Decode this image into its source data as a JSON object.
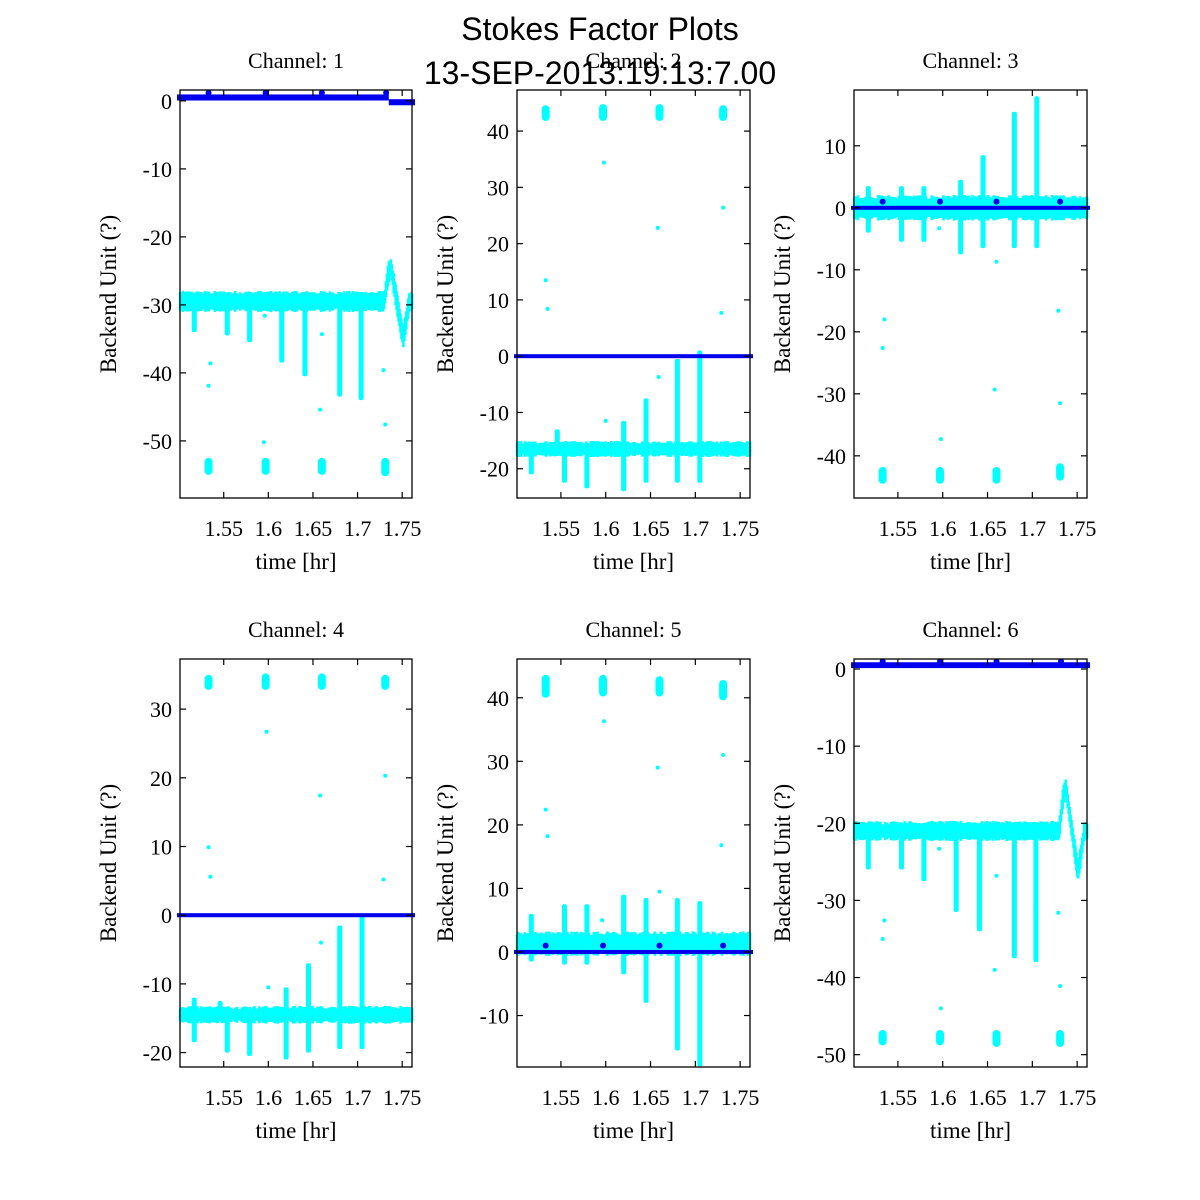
{
  "figure": {
    "title_line1": "Stokes Factor Plots",
    "title_line2": "13-SEP-2013:19:13:7.00",
    "colors": {
      "primary_series": "#0000ee",
      "secondary_series": "#00ffff",
      "axes": "#000000",
      "background": "#ffffff"
    }
  },
  "chart_data": [
    {
      "type": "scatter",
      "title": "Channel: 1",
      "xlabel": "time [hr]",
      "ylabel": "Backend Unit (?)",
      "xlim": [
        1.501,
        1.761
      ],
      "ylim": [
        -58.4,
        1.6
      ],
      "xticks": [
        1.55,
        1.6,
        1.65,
        1.7,
        1.75
      ],
      "xtick_labels": [
        "1.55",
        "1.6",
        "1.65",
        "1.7",
        "1.75"
      ],
      "yticks": [
        0,
        -10,
        -20,
        -30,
        -40,
        -50
      ],
      "ytick_labels": [
        "0",
        "-10",
        "-20",
        "-30",
        "-40",
        "-50"
      ],
      "series": [
        {
          "name": "blue",
          "color": "#0000ee",
          "baseline": 0.5,
          "noise": 0.3,
          "bumps": [
            {
              "x": 1.533,
              "y": 1.2
            },
            {
              "x": 1.597,
              "y": 1.2
            },
            {
              "x": 1.66,
              "y": 1.2
            },
            {
              "x": 1.732,
              "y": 1.2
            }
          ],
          "dip": {
            "x0": 1.735,
            "x1": 1.761,
            "y": -0.2
          }
        },
        {
          "name": "cyan",
          "color": "#00ffff",
          "baseline": -29.5,
          "noise": 1.2,
          "spikes": [
            {
              "x": 1.517,
              "y": -34
            },
            {
              "x": 1.554,
              "y": -34.5
            },
            {
              "x": 1.579,
              "y": -35.5
            },
            {
              "x": 1.615,
              "y": -38.5
            },
            {
              "x": 1.641,
              "y": -40.5
            },
            {
              "x": 1.68,
              "y": -43.5
            },
            {
              "x": 1.704,
              "y": -44
            }
          ],
          "bump": {
            "x": 1.74,
            "peak": -24.5,
            "trough": -35
          },
          "clusters": [
            {
              "x": 1.533,
              "y0": -55,
              "y1": -52.5
            },
            {
              "x": 1.597,
              "y0": -55,
              "y1": -52.5
            },
            {
              "x": 1.66,
              "y0": -55,
              "y1": -52.5
            },
            {
              "x": 1.731,
              "y0": -55.2,
              "y1": -52.5
            }
          ],
          "outliers": [
            [
              1.535,
              -38.6
            ],
            [
              1.533,
              -41.9
            ],
            [
              1.595,
              -50.2
            ],
            [
              1.596,
              -31.6
            ],
            [
              1.658,
              -45.4
            ],
            [
              1.66,
              -34.3
            ],
            [
              1.729,
              -39.6
            ],
            [
              1.731,
              -47.6
            ]
          ]
        }
      ]
    },
    {
      "type": "scatter",
      "title": "Channel: 2",
      "xlabel": "time [hr]",
      "ylabel": "Backend Unit (?)",
      "xlim": [
        1.501,
        1.761
      ],
      "ylim": [
        -25.2,
        47.3
      ],
      "xticks": [
        1.55,
        1.6,
        1.65,
        1.7,
        1.75
      ],
      "xtick_labels": [
        "1.55",
        "1.6",
        "1.65",
        "1.7",
        "1.75"
      ],
      "yticks": [
        40,
        30,
        20,
        10,
        0,
        -10,
        -20
      ],
      "ytick_labels": [
        "40",
        "30",
        "20",
        "10",
        "0",
        "-10",
        "-20"
      ],
      "series": [
        {
          "name": "blue",
          "color": "#0000ee",
          "baseline": 0,
          "noise": 0.15
        },
        {
          "name": "cyan",
          "color": "#00ffff",
          "baseline": -16.5,
          "noise": 1.1,
          "spikes_up": [
            {
              "x": 1.546,
              "y": -13
            },
            {
              "x": 1.62,
              "y": -11.5
            },
            {
              "x": 1.645,
              "y": -7.5
            },
            {
              "x": 1.68,
              "y": -0.5
            },
            {
              "x": 1.705,
              "y": 1
            }
          ],
          "spikes_down": [
            {
              "x": 1.517,
              "y": -21
            },
            {
              "x": 1.554,
              "y": -22.5
            },
            {
              "x": 1.579,
              "y": -23.5
            },
            {
              "x": 1.62,
              "y": -24
            },
            {
              "x": 1.645,
              "y": -22.5
            },
            {
              "x": 1.68,
              "y": -22.5
            },
            {
              "x": 1.705,
              "y": -22.5
            }
          ],
          "clusters": [
            {
              "x": 1.533,
              "y0": 41.8,
              "y1": 44.6
            },
            {
              "x": 1.597,
              "y0": 41.8,
              "y1": 44.8
            },
            {
              "x": 1.66,
              "y0": 41.8,
              "y1": 44.8
            },
            {
              "x": 1.731,
              "y0": 41.8,
              "y1": 44.6
            }
          ],
          "outliers": [
            [
              1.533,
              13.5
            ],
            [
              1.535,
              8.4
            ],
            [
              1.598,
              34.4
            ],
            [
              1.658,
              22.8
            ],
            [
              1.731,
              26.4
            ],
            [
              1.729,
              7.7
            ],
            [
              1.659,
              -3.7
            ],
            [
              1.6,
              -11.5
            ]
          ]
        }
      ]
    },
    {
      "type": "scatter",
      "title": "Channel: 3",
      "xlabel": "time [hr]",
      "ylabel": "Backend Unit (?)",
      "xlim": [
        1.501,
        1.761
      ],
      "ylim": [
        -46.8,
        19
      ],
      "xticks": [
        1.55,
        1.6,
        1.65,
        1.7,
        1.75
      ],
      "xtick_labels": [
        "1.55",
        "1.6",
        "1.65",
        "1.7",
        "1.75"
      ],
      "yticks": [
        10,
        0,
        -10,
        -20,
        -30,
        -40
      ],
      "ytick_labels": [
        "10",
        "0",
        "-10",
        "-20",
        "-30",
        "-40"
      ],
      "series": [
        {
          "name": "blue",
          "color": "#0000ee",
          "baseline": 0,
          "noise": 0.15,
          "bumps": [
            {
              "x": 1.533,
              "y": 1
            },
            {
              "x": 1.597,
              "y": 1
            },
            {
              "x": 1.66,
              "y": 1
            },
            {
              "x": 1.731,
              "y": 1
            }
          ]
        },
        {
          "name": "cyan",
          "color": "#00ffff",
          "baseline": 0,
          "noise": 1.6,
          "spikes_up": [
            {
              "x": 1.517,
              "y": 3.5
            },
            {
              "x": 1.554,
              "y": 3.5
            },
            {
              "x": 1.579,
              "y": 3.5
            },
            {
              "x": 1.62,
              "y": 4.5
            },
            {
              "x": 1.645,
              "y": 8.5
            },
            {
              "x": 1.68,
              "y": 15.5
            },
            {
              "x": 1.705,
              "y": 18
            }
          ],
          "spikes_down": [
            {
              "x": 1.517,
              "y": -4
            },
            {
              "x": 1.554,
              "y": -5.5
            },
            {
              "x": 1.579,
              "y": -5.5
            },
            {
              "x": 1.62,
              "y": -7.5
            },
            {
              "x": 1.645,
              "y": -6.5
            },
            {
              "x": 1.68,
              "y": -6.5
            },
            {
              "x": 1.705,
              "y": -6.5
            }
          ],
          "clusters": [
            {
              "x": 1.533,
              "y0": -44.5,
              "y1": -41.8
            },
            {
              "x": 1.597,
              "y0": -44.5,
              "y1": -41.8
            },
            {
              "x": 1.66,
              "y0": -44.5,
              "y1": -41.8
            },
            {
              "x": 1.731,
              "y0": -44,
              "y1": -41.2
            }
          ],
          "outliers": [
            [
              1.535,
              -18
            ],
            [
              1.533,
              -22.6
            ],
            [
              1.598,
              -37.3
            ],
            [
              1.596,
              -3.3
            ],
            [
              1.658,
              -29.3
            ],
            [
              1.66,
              -8.7
            ],
            [
              1.729,
              -16.6
            ],
            [
              1.731,
              -31.5
            ]
          ]
        }
      ]
    },
    {
      "type": "scatter",
      "title": "Channel: 4",
      "xlabel": "time [hr]",
      "ylabel": "Backend Unit (?)",
      "xlim": [
        1.501,
        1.761
      ],
      "ylim": [
        -22.1,
        37.3
      ],
      "xticks": [
        1.55,
        1.6,
        1.65,
        1.7,
        1.75
      ],
      "xtick_labels": [
        "1.55",
        "1.6",
        "1.65",
        "1.7",
        "1.75"
      ],
      "yticks": [
        30,
        20,
        10,
        0,
        -10,
        -20
      ],
      "ytick_labels": [
        "30",
        "20",
        "10",
        "0",
        "-10",
        "-20"
      ],
      "series": [
        {
          "name": "blue",
          "color": "#0000ee",
          "baseline": 0,
          "noise": 0.15
        },
        {
          "name": "cyan",
          "color": "#00ffff",
          "baseline": -14.5,
          "noise": 1.0,
          "spikes_up": [
            {
              "x": 1.517,
              "y": -12
            },
            {
              "x": 1.546,
              "y": -12.5
            },
            {
              "x": 1.62,
              "y": -10.5
            },
            {
              "x": 1.645,
              "y": -7
            },
            {
              "x": 1.68,
              "y": -1.5
            },
            {
              "x": 1.705,
              "y": 0
            }
          ],
          "spikes_down": [
            {
              "x": 1.517,
              "y": -18.5
            },
            {
              "x": 1.554,
              "y": -20
            },
            {
              "x": 1.579,
              "y": -20.5
            },
            {
              "x": 1.62,
              "y": -21
            },
            {
              "x": 1.645,
              "y": -20
            },
            {
              "x": 1.68,
              "y": -19.5
            },
            {
              "x": 1.705,
              "y": -19.5
            }
          ],
          "clusters": [
            {
              "x": 1.533,
              "y0": 32.8,
              "y1": 35
            },
            {
              "x": 1.597,
              "y0": 32.8,
              "y1": 35.2
            },
            {
              "x": 1.66,
              "y0": 32.8,
              "y1": 35.2
            },
            {
              "x": 1.731,
              "y0": 32.8,
              "y1": 35
            }
          ],
          "outliers": [
            [
              1.533,
              9.9
            ],
            [
              1.535,
              5.6
            ],
            [
              1.598,
              26.7
            ],
            [
              1.658,
              17.4
            ],
            [
              1.731,
              20.3
            ],
            [
              1.729,
              5.2
            ],
            [
              1.659,
              -4
            ],
            [
              1.6,
              -10.5
            ]
          ]
        }
      ]
    },
    {
      "type": "scatter",
      "title": "Channel: 5",
      "xlabel": "time [hr]",
      "ylabel": "Backend Unit (?)",
      "xlim": [
        1.501,
        1.761
      ],
      "ylim": [
        -18.1,
        46.1
      ],
      "xticks": [
        1.55,
        1.6,
        1.65,
        1.7,
        1.75
      ],
      "xtick_labels": [
        "1.55",
        "1.6",
        "1.65",
        "1.7",
        "1.75"
      ],
      "yticks": [
        40,
        30,
        20,
        10,
        0,
        -10
      ],
      "ytick_labels": [
        "40",
        "30",
        "20",
        "10",
        "0",
        "-10"
      ],
      "series": [
        {
          "name": "blue",
          "color": "#0000ee",
          "baseline": 0,
          "noise": 0.15,
          "bumps": [
            {
              "x": 1.533,
              "y": 1
            },
            {
              "x": 1.597,
              "y": 1
            },
            {
              "x": 1.66,
              "y": 1
            },
            {
              "x": 1.731,
              "y": 1
            }
          ]
        },
        {
          "name": "cyan",
          "color": "#00ffff",
          "baseline": 1.3,
          "noise": 1.5,
          "spikes_up": [
            {
              "x": 1.517,
              "y": 6
            },
            {
              "x": 1.554,
              "y": 7.5
            },
            {
              "x": 1.579,
              "y": 7.5
            },
            {
              "x": 1.62,
              "y": 9
            },
            {
              "x": 1.645,
              "y": 8.5
            },
            {
              "x": 1.68,
              "y": 8.5
            },
            {
              "x": 1.705,
              "y": 8
            }
          ],
          "spikes_down": [
            {
              "x": 1.517,
              "y": -1.5
            },
            {
              "x": 1.554,
              "y": -2
            },
            {
              "x": 1.579,
              "y": -2
            },
            {
              "x": 1.62,
              "y": -3.5
            },
            {
              "x": 1.645,
              "y": -8
            },
            {
              "x": 1.68,
              "y": -15.5
            },
            {
              "x": 1.705,
              "y": -18
            }
          ],
          "clusters": [
            {
              "x": 1.533,
              "y0": 40,
              "y1": 43.6
            },
            {
              "x": 1.597,
              "y0": 40.2,
              "y1": 43.6
            },
            {
              "x": 1.66,
              "y0": 40.2,
              "y1": 43.4
            },
            {
              "x": 1.731,
              "y0": 39.6,
              "y1": 42.8
            }
          ],
          "outliers": [
            [
              1.533,
              22.4
            ],
            [
              1.535,
              18.2
            ],
            [
              1.598,
              36.3
            ],
            [
              1.658,
              29
            ],
            [
              1.731,
              31
            ],
            [
              1.729,
              16.8
            ],
            [
              1.66,
              9.5
            ],
            [
              1.596,
              5
            ]
          ]
        }
      ]
    },
    {
      "type": "scatter",
      "title": "Channel: 6",
      "xlabel": "time [hr]",
      "ylabel": "Backend Unit (?)",
      "xlim": [
        1.501,
        1.761
      ],
      "ylim": [
        -51.6,
        1.3
      ],
      "xticks": [
        1.55,
        1.6,
        1.65,
        1.7,
        1.75
      ],
      "xtick_labels": [
        "1.55",
        "1.6",
        "1.65",
        "1.7",
        "1.75"
      ],
      "yticks": [
        0,
        -10,
        -20,
        -30,
        -40,
        -50
      ],
      "ytick_labels": [
        "0",
        "-10",
        "-20",
        "-30",
        "-40",
        "-50"
      ],
      "series": [
        {
          "name": "blue",
          "color": "#0000ee",
          "baseline": 0.5,
          "noise": 0.25,
          "bumps": [
            {
              "x": 1.533,
              "y": 1
            },
            {
              "x": 1.597,
              "y": 1
            },
            {
              "x": 1.66,
              "y": 1
            },
            {
              "x": 1.732,
              "y": 1
            }
          ]
        },
        {
          "name": "cyan",
          "color": "#00ffff",
          "baseline": -21,
          "noise": 1.0,
          "spikes": [
            {
              "x": 1.517,
              "y": -26
            },
            {
              "x": 1.554,
              "y": -26
            },
            {
              "x": 1.579,
              "y": -27.5
            },
            {
              "x": 1.615,
              "y": -31.5
            },
            {
              "x": 1.641,
              "y": -34
            },
            {
              "x": 1.68,
              "y": -37.5
            },
            {
              "x": 1.704,
              "y": -38
            }
          ],
          "bump": {
            "x": 1.74,
            "peak": -15.5,
            "trough": -26.5
          },
          "clusters": [
            {
              "x": 1.533,
              "y0": -48.8,
              "y1": -46.8
            },
            {
              "x": 1.597,
              "y0": -48.8,
              "y1": -46.8
            },
            {
              "x": 1.66,
              "y0": -49,
              "y1": -46.8
            },
            {
              "x": 1.731,
              "y0": -49,
              "y1": -46.8
            }
          ],
          "outliers": [
            [
              1.535,
              -32.6
            ],
            [
              1.533,
              -35
            ],
            [
              1.598,
              -44
            ],
            [
              1.596,
              -23.3
            ],
            [
              1.658,
              -39
            ],
            [
              1.66,
              -26.8
            ],
            [
              1.729,
              -31.6
            ],
            [
              1.731,
              -41.1
            ]
          ]
        }
      ]
    }
  ]
}
